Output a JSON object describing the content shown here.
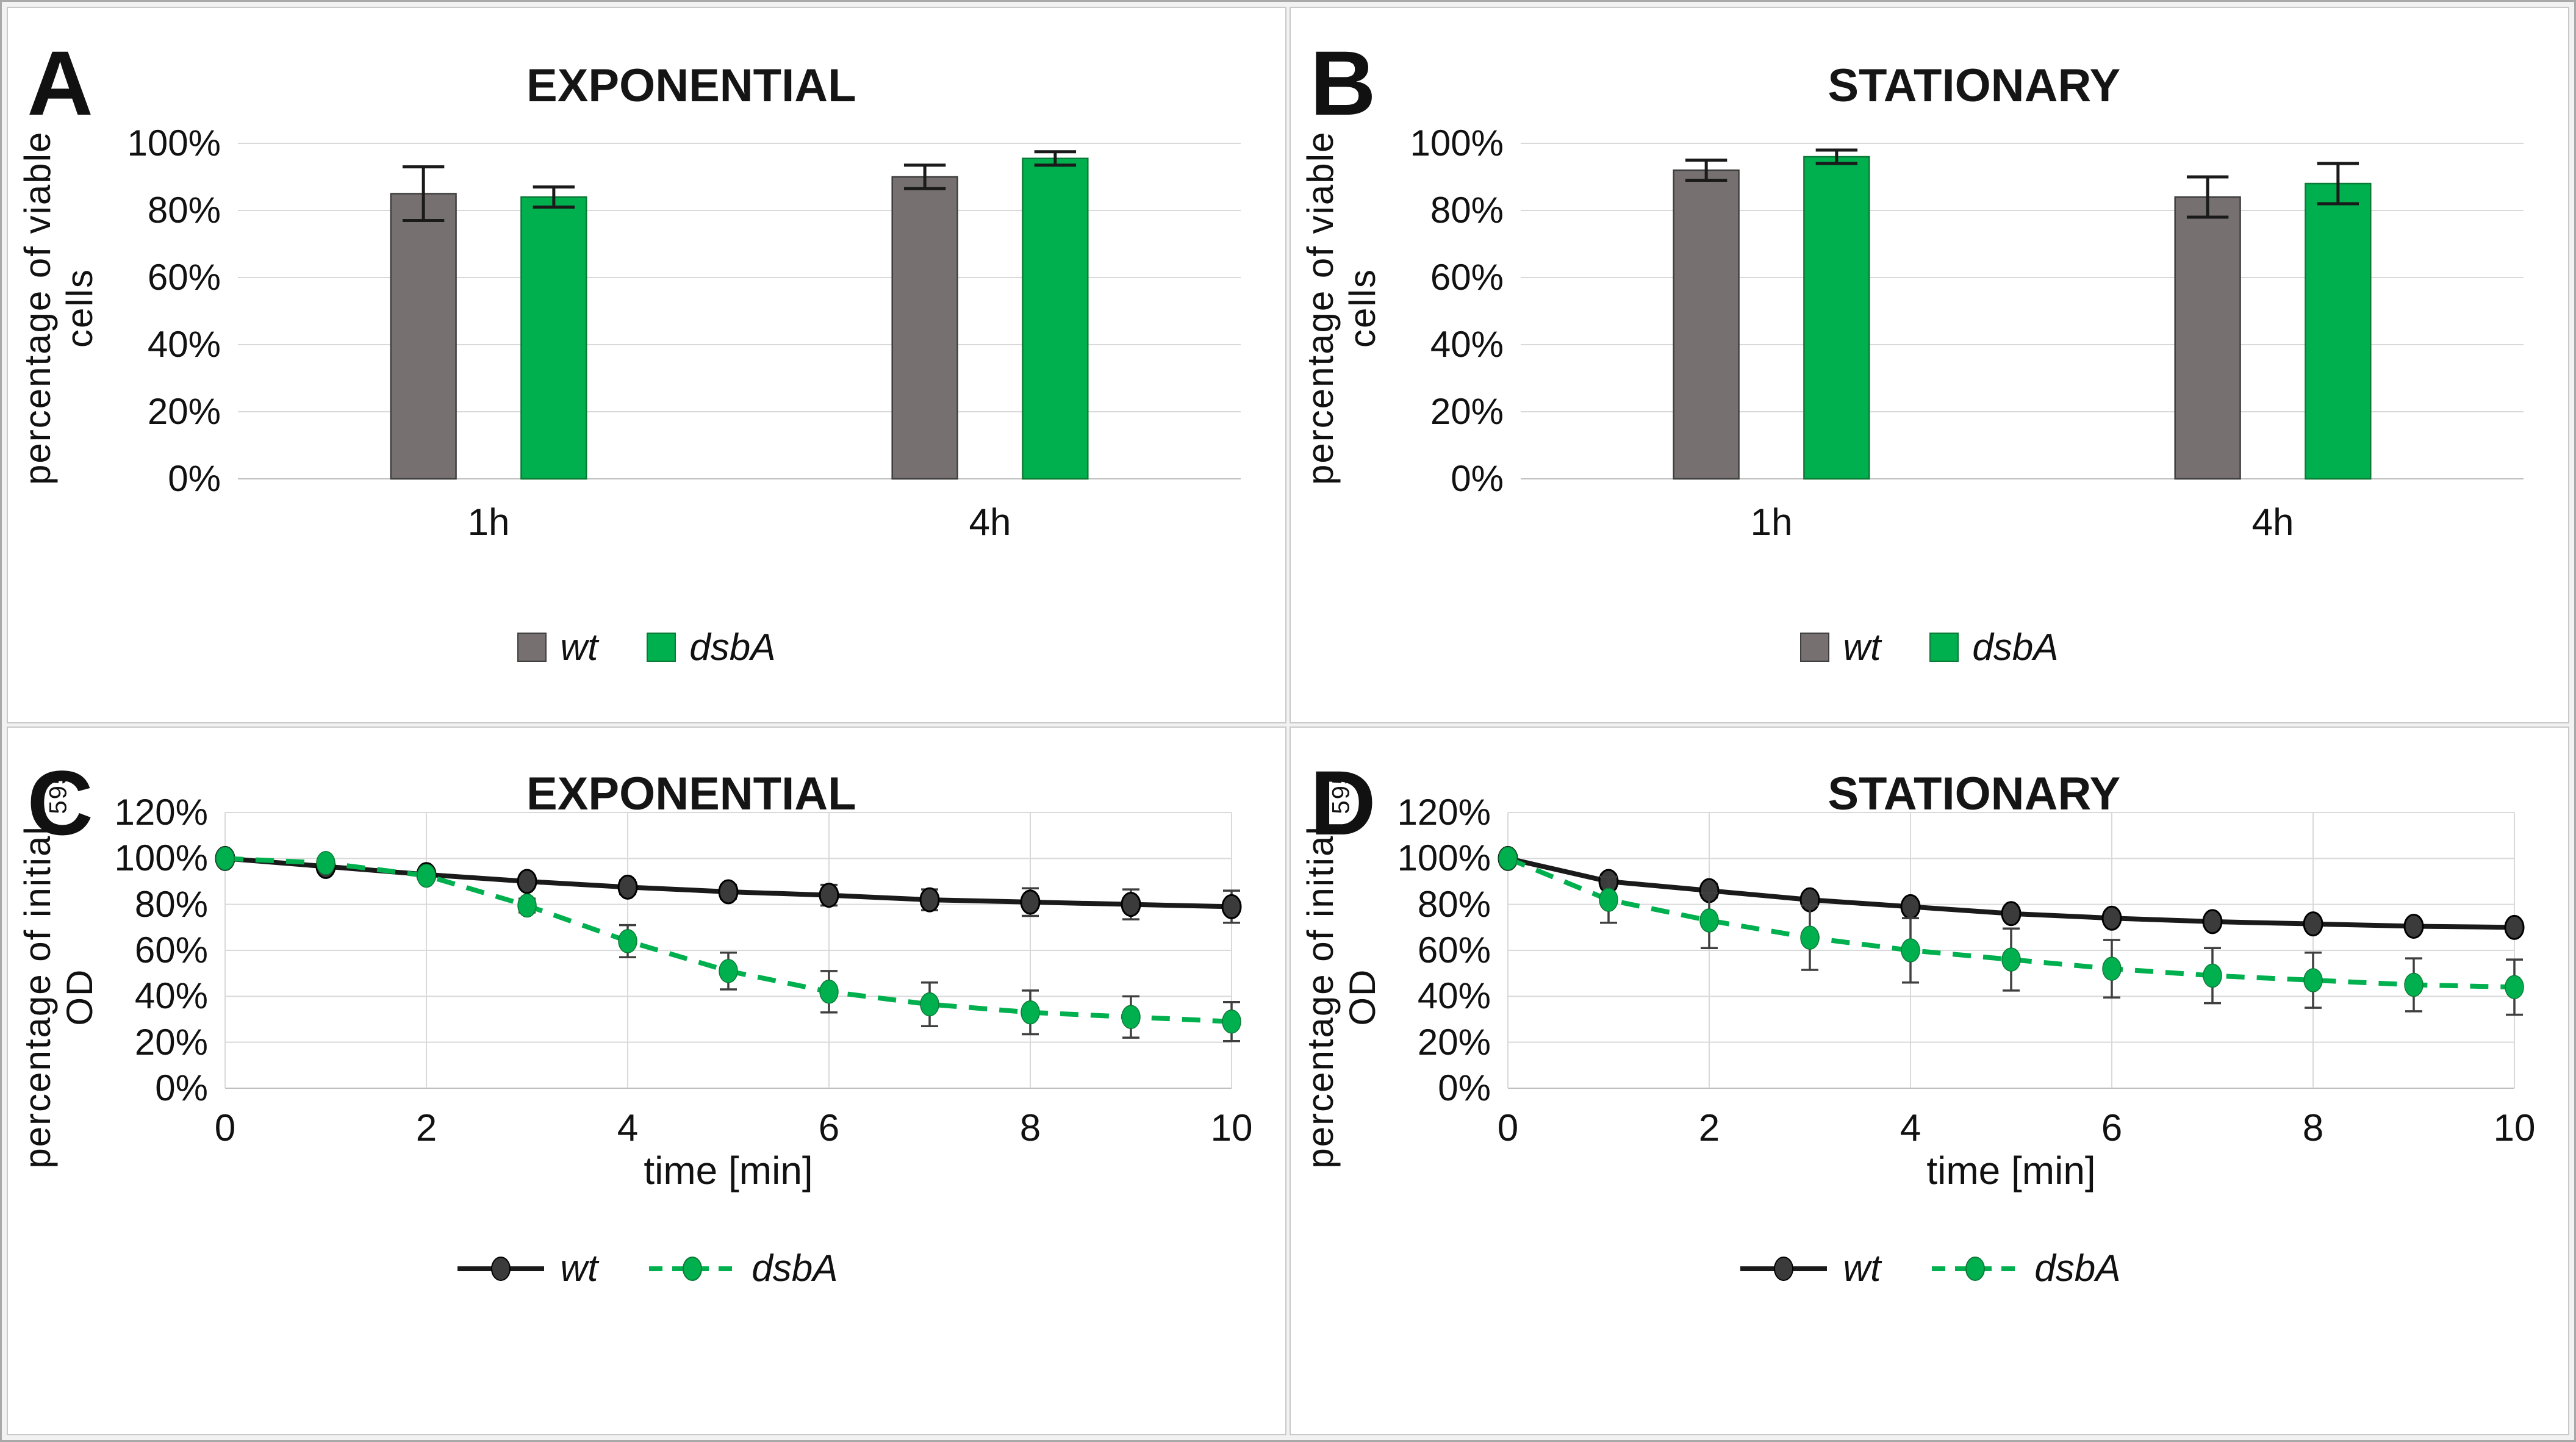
{
  "figure_caption": "",
  "colors": {
    "wt_bar_fill": "#767170",
    "wt_bar_edge": "#3f3f3f",
    "dsbA_fill": "#00B04F",
    "dsbA_edge": "#0c7a36",
    "wt_line": "#1a1a1a",
    "wt_marker_fill": "#3b3b3b",
    "wt_marker_edge": "#000000",
    "error_bar_dark": "#1a1a1a",
    "error_bar_gray": "#3f3f3f",
    "gridline": "#d9d9d9",
    "zero_axis": "#bfbfbf",
    "panel_border": "#c9c9c9",
    "outer_border": "#a9a9a9"
  },
  "chart_data": [
    {
      "panel_label": "A",
      "type": "bar",
      "title": "EXPONENTIAL",
      "ylabel_main": "percentage of viable cells",
      "ylabel_sub": "",
      "ylim": [
        0,
        100
      ],
      "ytick_step": 20,
      "ytick_labels": [
        "0%",
        "20%",
        "40%",
        "60%",
        "80%",
        "100%"
      ],
      "grid": true,
      "legend_position": "bottom",
      "categories": [
        "1h",
        "4h"
      ],
      "series": [
        {
          "name": "wt",
          "color_key": "wt_bar_fill",
          "edge_key": "wt_bar_edge",
          "values": [
            85,
            90
          ],
          "errors": [
            8,
            3.5
          ]
        },
        {
          "name": "dsbA",
          "color_key": "dsbA_fill",
          "edge_key": "dsbA_edge",
          "values": [
            84,
            95.5
          ],
          "errors": [
            3,
            2
          ]
        }
      ]
    },
    {
      "panel_label": "B",
      "type": "bar",
      "title": "STATIONARY",
      "ylabel_main": "percentage of viable cells",
      "ylabel_sub": "",
      "ylim": [
        0,
        100
      ],
      "ytick_step": 20,
      "ytick_labels": [
        "0%",
        "20%",
        "40%",
        "60%",
        "80%",
        "100%"
      ],
      "grid": true,
      "legend_position": "bottom",
      "categories": [
        "1h",
        "4h"
      ],
      "series": [
        {
          "name": "wt",
          "color_key": "wt_bar_fill",
          "edge_key": "wt_bar_edge",
          "values": [
            92,
            84
          ],
          "errors": [
            3,
            6
          ]
        },
        {
          "name": "dsbA",
          "color_key": "dsbA_fill",
          "edge_key": "dsbA_edge",
          "values": [
            96,
            88
          ],
          "errors": [
            2,
            6
          ]
        }
      ]
    },
    {
      "panel_label": "C",
      "type": "line",
      "title": "EXPONENTIAL",
      "ylabel_main": "percentage of initial OD",
      "ylabel_sub": "595",
      "xlabel": "time [min]",
      "ylim": [
        0,
        120
      ],
      "ytick_step": 20,
      "ytick_labels": [
        "0%",
        "20%",
        "40%",
        "60%",
        "80%",
        "100%",
        "120%"
      ],
      "xlim": [
        0,
        10
      ],
      "x": [
        0,
        1,
        2,
        3,
        4,
        5,
        6,
        7,
        8,
        9,
        10
      ],
      "xtick_values": [
        0,
        2,
        4,
        6,
        8,
        10
      ],
      "xtick_labels": [
        "0",
        "2",
        "4",
        "6",
        "8",
        "10"
      ],
      "grid": true,
      "legend_position": "bottom",
      "series": [
        {
          "name": "wt",
          "style": "solid",
          "color_key": "wt_line",
          "marker_key": "wt_marker_fill",
          "values": [
            100,
            96.5,
            93,
            90,
            87.5,
            85.5,
            84,
            82,
            81,
            80,
            79
          ],
          "errors": [
            1,
            2,
            2,
            2,
            3,
            3,
            4.5,
            4.5,
            6,
            6.5,
            7
          ]
        },
        {
          "name": "dsbA",
          "style": "dashed",
          "color_key": "dsbA_fill",
          "marker_key": "dsbA_fill",
          "values": [
            100,
            98,
            92.5,
            79.5,
            64,
            51,
            42,
            36.5,
            33,
            31,
            29
          ],
          "errors": [
            1,
            1.5,
            2,
            3,
            7,
            8,
            9,
            9.5,
            9.5,
            9,
            8.5
          ]
        }
      ]
    },
    {
      "panel_label": "D",
      "type": "line",
      "title": "STATIONARY",
      "ylabel_main": "percentage of initial OD",
      "ylabel_sub": "595",
      "xlabel": "time [min]",
      "ylim": [
        0,
        120
      ],
      "ytick_step": 20,
      "ytick_labels": [
        "0%",
        "20%",
        "40%",
        "60%",
        "80%",
        "100%",
        "120%"
      ],
      "xlim": [
        0,
        10
      ],
      "x": [
        0,
        1,
        2,
        3,
        4,
        5,
        6,
        7,
        8,
        9,
        10
      ],
      "xtick_values": [
        0,
        2,
        4,
        6,
        8,
        10
      ],
      "xtick_labels": [
        "0",
        "2",
        "4",
        "6",
        "8",
        "10"
      ],
      "grid": true,
      "legend_position": "bottom",
      "series": [
        {
          "name": "wt",
          "style": "solid",
          "color_key": "wt_line",
          "marker_key": "wt_marker_fill",
          "values": [
            100,
            90,
            86,
            82,
            79,
            76,
            74,
            72.5,
            71.5,
            70.5,
            70
          ],
          "errors": [
            1,
            3,
            3,
            2.5,
            2,
            2,
            2,
            2,
            2,
            2,
            2
          ]
        },
        {
          "name": "dsbA",
          "style": "dashed",
          "color_key": "dsbA_fill",
          "marker_key": "dsbA_fill",
          "values": [
            100,
            82,
            73,
            65.5,
            60,
            56,
            52,
            49,
            47,
            45,
            44
          ],
          "errors": [
            1,
            10,
            12,
            14,
            14,
            13.5,
            12.5,
            12,
            12,
            11.5,
            12
          ]
        }
      ]
    }
  ]
}
